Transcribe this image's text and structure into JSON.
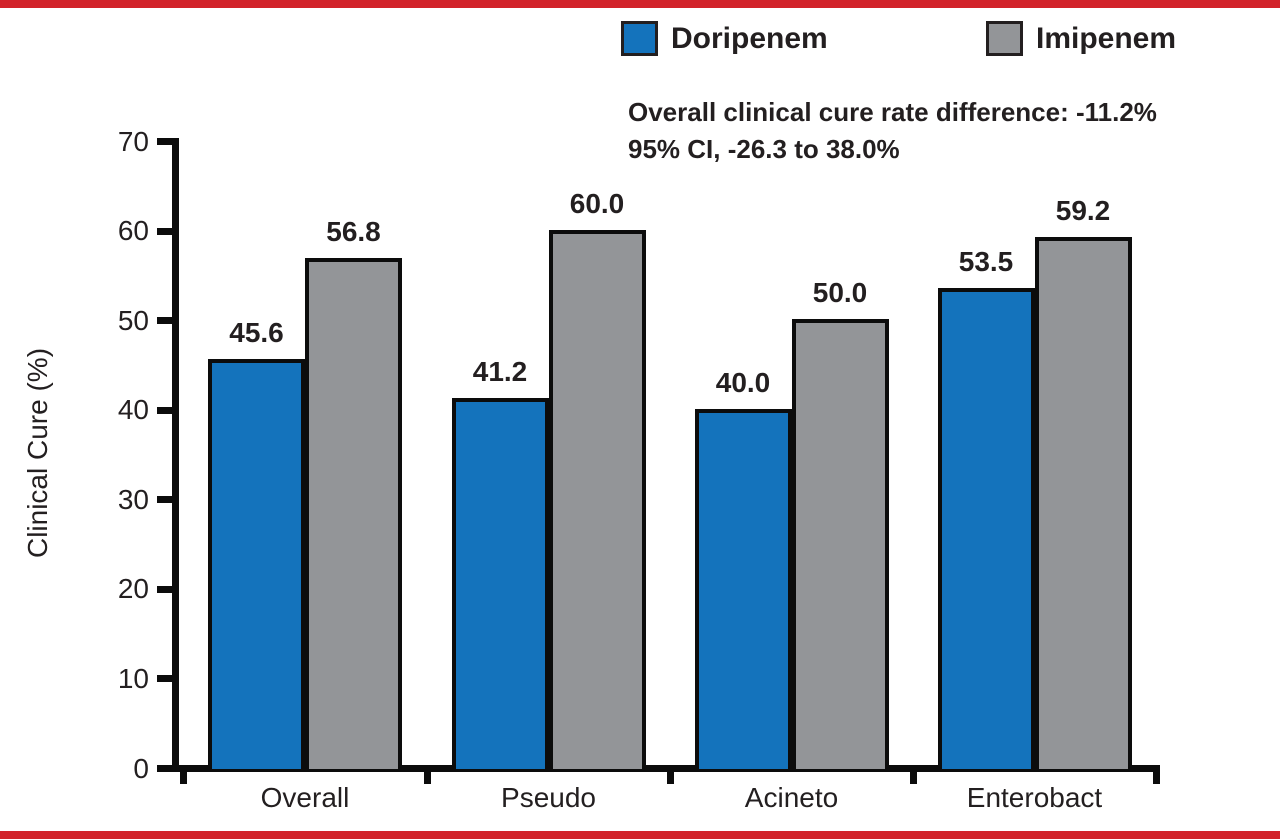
{
  "figure": {
    "background": "#ffffff",
    "rule_color": "#d2232a",
    "axis_color": "#0c0c0c",
    "text_color": "#231f20"
  },
  "chart_data": {
    "type": "bar",
    "title": "",
    "xlabel": "",
    "ylabel": "Clinical Cure (%)",
    "categories": [
      "Overall",
      "Pseudo",
      "Acineto",
      "Enterobact"
    ],
    "series": [
      {
        "name": "Doripenem",
        "color": "#1473bc",
        "values": [
          45.6,
          41.2,
          40.0,
          53.5
        ]
      },
      {
        "name": "Imipenem",
        "color": "#939598",
        "values": [
          56.8,
          60.0,
          50.0,
          59.2
        ]
      }
    ],
    "ylim": [
      0,
      70
    ],
    "yticks": [
      0,
      10,
      20,
      30,
      40,
      50,
      60,
      70
    ],
    "bar_label_decimals": 1,
    "grid": false,
    "legend_position": "top",
    "annotation": {
      "line1": "Overall clinical cure rate difference: -11.2%",
      "line2": "95% CI, -26.3 to 38.0%"
    }
  }
}
